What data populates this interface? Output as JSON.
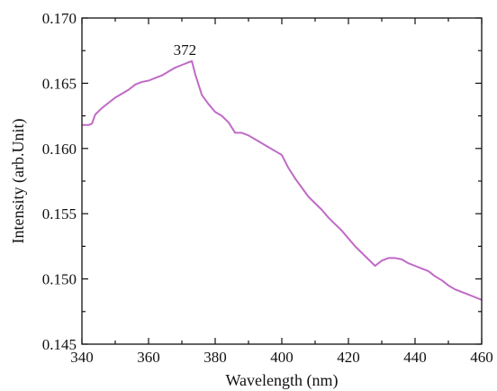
{
  "chart_data": {
    "type": "line",
    "title": "",
    "xlabel": "Wavelength (nm)",
    "ylabel": "Intensity (arb.Unit)",
    "xlim": [
      340,
      460
    ],
    "ylim": [
      0.145,
      0.17
    ],
    "x_ticks": [
      340,
      360,
      380,
      400,
      420,
      440,
      460
    ],
    "x_tick_labels": [
      "340",
      "360",
      "380",
      "400",
      "420",
      "440",
      "460"
    ],
    "y_ticks": [
      0.145,
      0.15,
      0.155,
      0.16,
      0.165,
      0.17
    ],
    "y_tick_labels": [
      "0.145",
      "0.150",
      "0.155",
      "0.160",
      "0.165",
      "0.170"
    ],
    "grid": false,
    "legend": "none",
    "line_color": "#c06ac6",
    "series": [
      {
        "x": [
          340,
          341,
          342,
          343,
          344,
          346,
          348,
          350,
          352,
          354,
          356,
          358,
          360,
          362,
          364,
          366,
          368,
          370,
          372,
          373,
          374,
          376,
          378,
          380,
          382,
          384,
          386,
          388,
          390,
          392,
          394,
          396,
          398,
          400,
          402,
          404,
          406,
          408,
          410,
          412,
          414,
          416,
          418,
          420,
          422,
          424,
          426,
          428,
          430,
          432,
          434,
          436,
          438,
          440,
          442,
          444,
          446,
          448,
          450,
          452,
          454,
          456,
          458,
          460
        ],
        "y": [
          0.1618,
          0.1618,
          0.1618,
          0.1619,
          0.1626,
          0.1631,
          0.1635,
          0.1639,
          0.1642,
          0.1645,
          0.1649,
          0.1651,
          0.1652,
          0.1654,
          0.1656,
          0.1659,
          0.1662,
          0.1664,
          0.1666,
          0.1667,
          0.1657,
          0.1641,
          0.1634,
          0.1628,
          0.1625,
          0.162,
          0.1612,
          0.1612,
          0.161,
          0.1607,
          0.1604,
          0.1601,
          0.1598,
          0.1595,
          0.1585,
          0.1577,
          0.157,
          0.1563,
          0.1558,
          0.1553,
          0.1547,
          0.1542,
          0.1537,
          0.1531,
          0.1525,
          0.152,
          0.1515,
          0.151,
          0.1514,
          0.1516,
          0.1516,
          0.1515,
          0.1512,
          0.151,
          0.1508,
          0.1506,
          0.1502,
          0.1499,
          0.1495,
          0.1492,
          0.149,
          0.1488,
          0.1486,
          0.1484
        ]
      }
    ],
    "annotations": [
      {
        "text": "372",
        "x": 372,
        "y": 0.1667
      }
    ]
  }
}
